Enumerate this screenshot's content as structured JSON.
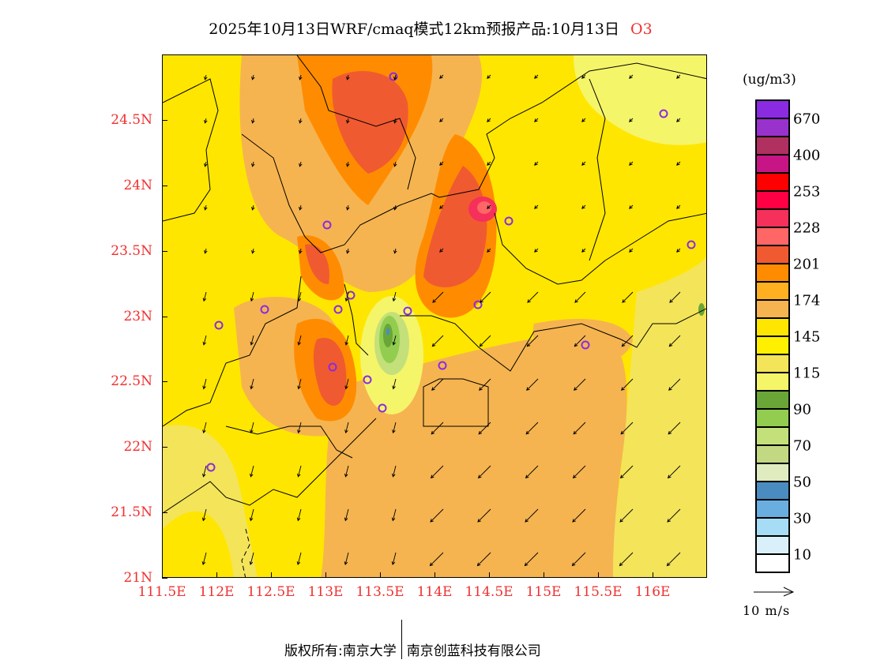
{
  "title": {
    "main": "2025年10月13日WRF/cmaq模式12km预报产品:10月13日",
    "species": "O3"
  },
  "axes": {
    "lat_labels": [
      "24.5N",
      "24N",
      "23.5N",
      "23N",
      "22.5N",
      "22N",
      "21.5N",
      "21N"
    ],
    "lat_values": [
      24.5,
      24,
      23.5,
      23,
      22.5,
      22,
      21.5,
      21
    ],
    "lon_labels": [
      "111.5E",
      "112E",
      "112.5E",
      "113E",
      "113.5E",
      "114E",
      "114.5E",
      "115E",
      "115.5E",
      "116E"
    ],
    "lon_values": [
      111.5,
      112,
      112.5,
      113,
      113.5,
      114,
      114.5,
      115,
      115.5,
      116
    ],
    "lon_range": [
      111.5,
      116.5
    ],
    "lat_range": [
      21,
      25
    ]
  },
  "legend": {
    "unit": "(ug/m3)",
    "colors": [
      "#8a2be2",
      "#9932cc",
      "#b03060",
      "#c71585",
      "#ff0000",
      "#ff0044",
      "#f5305a",
      "#ff6666",
      "#f05a30",
      "#ff8c00",
      "#ffb020",
      "#f5b450",
      "#ffe600",
      "#fff000",
      "#f3e45a",
      "#f5f56a",
      "#6aa637",
      "#92cd50",
      "#c3e07a",
      "#c3d882",
      "#e0ebc0",
      "#4a8cc0",
      "#6aaee0",
      "#a6dcf5",
      "#d9f0fa",
      "#ffffff"
    ],
    "labels": [
      "670",
      "400",
      "253",
      "228",
      "201",
      "174",
      "145",
      "115",
      "90",
      "70",
      "50",
      "30",
      "10"
    ]
  },
  "wind_reference": "10 m/s",
  "footer": {
    "left": "版权所有:南京大学",
    "right": "南京创蓝科技有限公司"
  }
}
